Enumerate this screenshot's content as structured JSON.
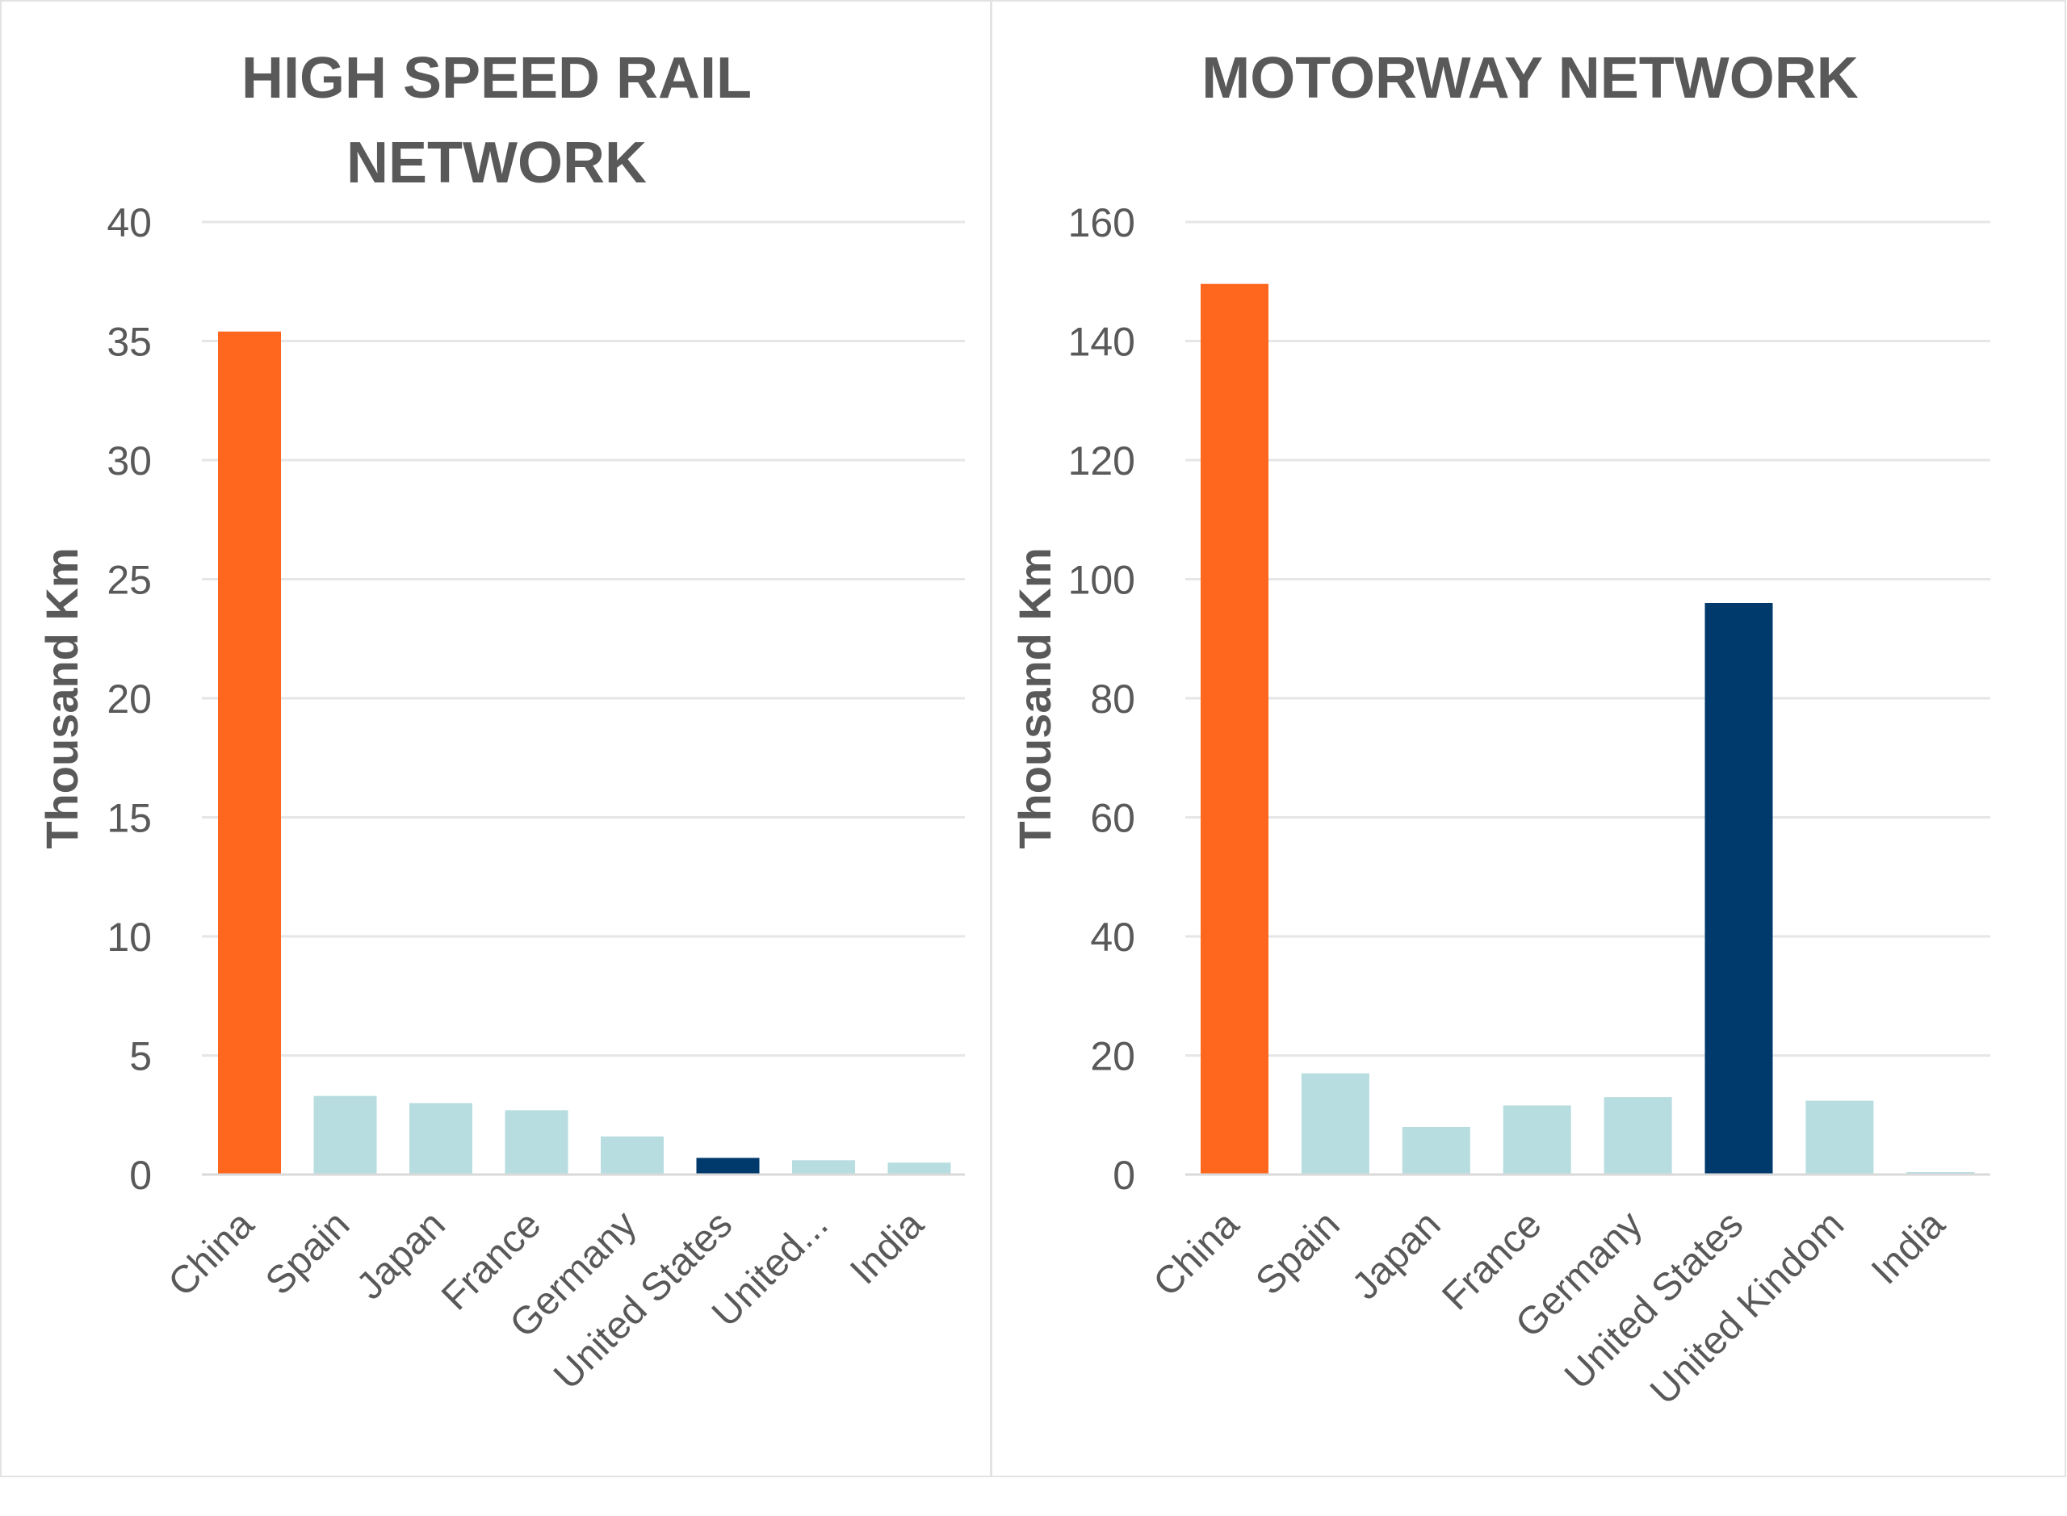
{
  "colors": {
    "china": "#FF671F",
    "united_states": "#003A6C",
    "other": "#B7DDE1",
    "gridline": "#E6E6E6",
    "panel_border": "#E3E3E3",
    "text": "#595959"
  },
  "chart_data": [
    {
      "type": "bar",
      "title_lines": [
        "HIGH SPEED RAIL",
        "NETWORK"
      ],
      "ylabel": "Thousand Km",
      "ylim": [
        0,
        40
      ],
      "yticks": [
        0,
        5,
        10,
        15,
        20,
        25,
        30,
        35,
        40
      ],
      "grid": true,
      "categories": [
        "China",
        "Spain",
        "Japan",
        "France",
        "Germany",
        "United States",
        "United...",
        "India"
      ],
      "values": [
        35.4,
        3.3,
        3.0,
        2.7,
        1.6,
        0.7,
        0.6,
        0.5
      ],
      "bar_colors": [
        "china",
        "other",
        "other",
        "other",
        "other",
        "united_states",
        "other",
        "other"
      ]
    },
    {
      "type": "bar",
      "title_lines": [
        "MOTORWAY NETWORK"
      ],
      "ylabel": "Thousand Km",
      "ylim": [
        0,
        160
      ],
      "yticks": [
        0,
        20,
        40,
        60,
        80,
        100,
        120,
        140,
        160
      ],
      "grid": true,
      "categories": [
        "China",
        "Spain",
        "Japan",
        "France",
        "Germany",
        "United States",
        "United Kindom",
        "India"
      ],
      "values": [
        149.6,
        17.0,
        8.0,
        11.6,
        13.0,
        96.0,
        12.4,
        0.4
      ],
      "bar_colors": [
        "china",
        "other",
        "other",
        "other",
        "other",
        "united_states",
        "other",
        "other"
      ]
    }
  ]
}
